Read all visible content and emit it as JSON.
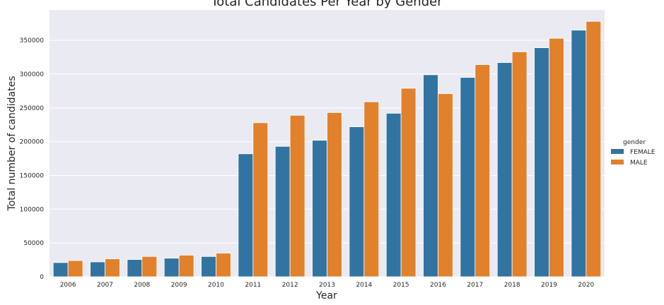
{
  "chart_data": {
    "type": "bar",
    "title": "Total Candidates Per Year by Gender",
    "xlabel": "Year",
    "ylabel": "Total number of candidates",
    "categories": [
      "2006",
      "2007",
      "2008",
      "2009",
      "2010",
      "2011",
      "2012",
      "2013",
      "2014",
      "2015",
      "2016",
      "2017",
      "2018",
      "2019",
      "2020"
    ],
    "series": [
      {
        "name": "FEMALE",
        "color": "#3274a1",
        "values": [
          21000,
          22000,
          25500,
          27500,
          30000,
          182000,
          193000,
          202000,
          222000,
          242000,
          299000,
          295000,
          317000,
          339000,
          365000
        ]
      },
      {
        "name": "MALE",
        "color": "#e1812c",
        "values": [
          24000,
          26500,
          30000,
          32000,
          35000,
          228000,
          239000,
          243000,
          259000,
          279000,
          271000,
          314000,
          333000,
          353000,
          378000
        ]
      }
    ],
    "ylim": [
      0,
      395000
    ],
    "yticks": [
      "0",
      "50000",
      "100000",
      "150000",
      "200000",
      "250000",
      "300000",
      "350000"
    ],
    "grid": true,
    "legend": {
      "title": "gender",
      "position": "right"
    }
  }
}
